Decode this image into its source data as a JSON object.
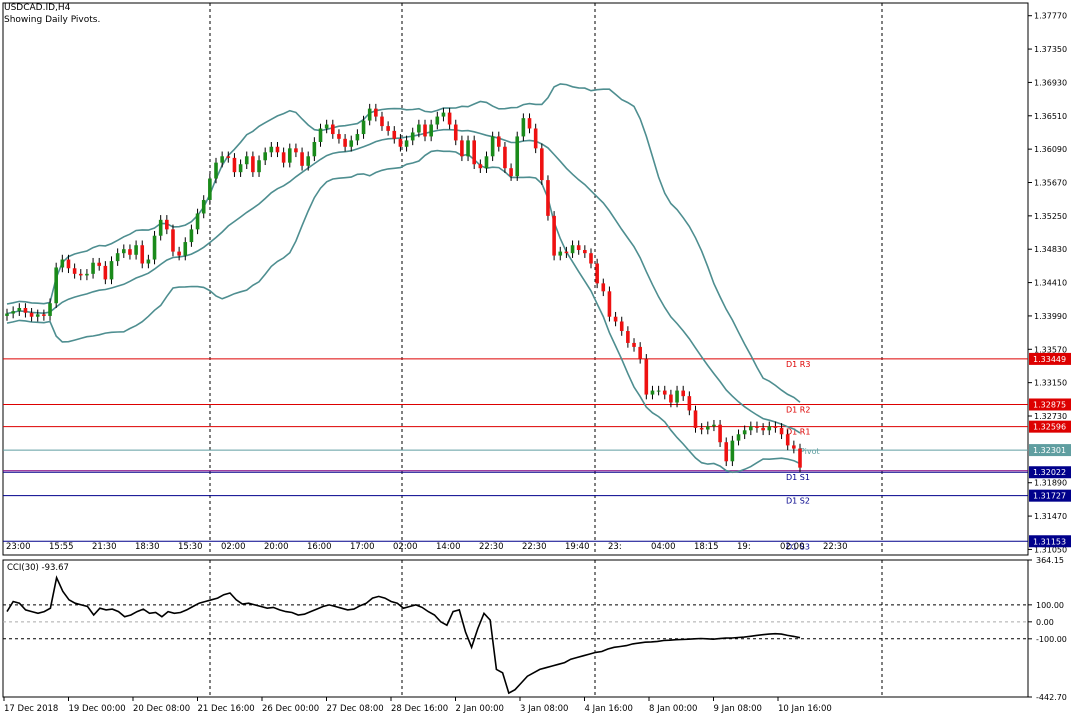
{
  "chart_data": {
    "type": "candlestick",
    "symbol_line": "USDCAD.ID,H4",
    "subtitle": "Showing Daily Pivots.",
    "colors": {
      "bull": "#1a8a1a",
      "bear": "#ee1111",
      "band": "#4e8e90",
      "pivot_red": "#dd0000",
      "pivot_blue": "#00008b",
      "pivot_teal": "#5f9ea0",
      "pivot_purple": "#800080"
    },
    "y_axis_labels": [
      "1.37770",
      "1.37350",
      "1.36930",
      "1.36510",
      "1.36090",
      "1.35670",
      "1.35250",
      "1.34830",
      "1.34410",
      "1.33990",
      "1.33570",
      "1.33150",
      "1.32730",
      "1.31890",
      "1.31470",
      "1.31050"
    ],
    "ylim": [
      1.3098,
      1.3793
    ],
    "pivots": [
      {
        "label": "D1  R3",
        "value": 1.33449,
        "price_text": "1.33449",
        "color_key": "pivot_red"
      },
      {
        "label": "D1  R2",
        "value": 1.32875,
        "price_text": "1.32875",
        "color_key": "pivot_red"
      },
      {
        "label": "D1  R1",
        "value": 1.32596,
        "price_text": "1.32596",
        "color_key": "pivot_red"
      },
      {
        "label": "Pivot",
        "value": 1.32301,
        "price_text": "1.32301",
        "color_key": "pivot_teal"
      },
      {
        "label": "D1  S1",
        "value": 1.32022,
        "price_text": "1.32022",
        "color_key": "pivot_blue"
      },
      {
        "label": "D1  S2",
        "value": 1.31727,
        "price_text": "1.31727",
        "color_key": "pivot_blue"
      },
      {
        "label": "D1  S3",
        "value": 1.31153,
        "price_text": "1.31153",
        "color_key": "pivot_blue"
      }
    ],
    "purple_line_value": 1.3204,
    "time_stamps": [
      "23:00",
      "15:55",
      "21:30",
      "18:30",
      "15:30",
      "02:00",
      "20:00",
      "16:00",
      "17:00",
      "02:00",
      "14:00",
      "22:30",
      "22:30",
      "19:40",
      "23:",
      "04:00",
      "18:15",
      "19:",
      "02:00",
      "22:30"
    ],
    "x_labels": [
      "17 Dec 2018",
      "19 Dec 00:00",
      "20 Dec 08:00",
      "21 Dec 16:00",
      "26 Dec 00:00",
      "27 Dec 08:00",
      "28 Dec 16:00",
      "2 Jan 00:00",
      "3 Jan 08:00",
      "4 Jan 16:00",
      "8 Jan 00:00",
      "9 Jan 08:00",
      "10 Jan 16:00"
    ],
    "candles_close": [
      1.3402,
      1.3405,
      1.3409,
      1.3403,
      1.3398,
      1.3401,
      1.3399,
      1.3415,
      1.346,
      1.347,
      1.3459,
      1.3452,
      1.345,
      1.3452,
      1.3466,
      1.3462,
      1.3445,
      1.3468,
      1.3478,
      1.3483,
      1.3476,
      1.3488,
      1.3465,
      1.347,
      1.35,
      1.352,
      1.3508,
      1.348,
      1.3475,
      1.3492,
      1.3508,
      1.3528,
      1.3545,
      1.3572,
      1.3592,
      1.36,
      1.3598,
      1.358,
      1.359,
      1.36,
      1.358,
      1.3595,
      1.3605,
      1.3612,
      1.3605,
      1.3592,
      1.361,
      1.3605,
      1.3588,
      1.36,
      1.3618,
      1.3635,
      1.364,
      1.3628,
      1.3622,
      1.3612,
      1.362,
      1.3628,
      1.3645,
      1.366,
      1.365,
      1.3638,
      1.3632,
      1.3622,
      1.3612,
      1.362,
      1.363,
      1.364,
      1.3625,
      1.364,
      1.365,
      1.3655,
      1.364,
      1.362,
      1.36,
      1.362,
      1.359,
      1.3585,
      1.36,
      1.3625,
      1.3612,
      1.3585,
      1.3575,
      1.3625,
      1.3648,
      1.3635,
      1.361,
      1.357,
      1.3525,
      1.3475,
      1.348,
      1.3478,
      1.3488,
      1.3482,
      1.3478,
      1.3465,
      1.344,
      1.343,
      1.3398,
      1.3392,
      1.338,
      1.3365,
      1.336,
      1.3345,
      1.33,
      1.3305,
      1.3305,
      1.33,
      1.329,
      1.3305,
      1.3298,
      1.328,
      1.3258,
      1.3256,
      1.326,
      1.3262,
      1.324,
      1.3216,
      1.3242,
      1.325,
      1.3255,
      1.326,
      1.3258,
      1.3255,
      1.326,
      1.3258,
      1.325,
      1.3236,
      1.3232,
      1.3208
    ],
    "cci": {
      "label": "CCI(30) -93.67",
      "ticks": [
        "364.15",
        "100.00",
        "0.00",
        "-100.00",
        "-442.70"
      ],
      "ylim": [
        -442.7,
        364.15
      ],
      "values": [
        60,
        120,
        110,
        70,
        60,
        50,
        60,
        80,
        260,
        180,
        130,
        110,
        100,
        90,
        40,
        80,
        70,
        75,
        60,
        30,
        40,
        60,
        75,
        50,
        55,
        30,
        60,
        50,
        55,
        70,
        90,
        110,
        120,
        130,
        140,
        160,
        170,
        130,
        105,
        110,
        100,
        90,
        80,
        85,
        70,
        60,
        55,
        40,
        45,
        60,
        75,
        90,
        100,
        90,
        80,
        70,
        75,
        95,
        110,
        140,
        150,
        140,
        120,
        110,
        80,
        90,
        100,
        85,
        60,
        40,
        0,
        -20,
        60,
        70,
        -60,
        -150,
        -40,
        50,
        10,
        -280,
        -300,
        -420,
        -400,
        -360,
        -320,
        -300,
        -280,
        -270,
        -260,
        -250,
        -240,
        -220,
        -210,
        -200,
        -190,
        -180,
        -175,
        -160,
        -150,
        -145,
        -140,
        -130,
        -125,
        -120,
        -118,
        -115,
        -110,
        -108,
        -105,
        -104,
        -102,
        -100,
        -98,
        -100,
        -102,
        -99,
        -96,
        -95,
        -92,
        -90,
        -85,
        -80,
        -76,
        -72,
        -70,
        -72,
        -80,
        -86,
        -93.67
      ]
    }
  }
}
